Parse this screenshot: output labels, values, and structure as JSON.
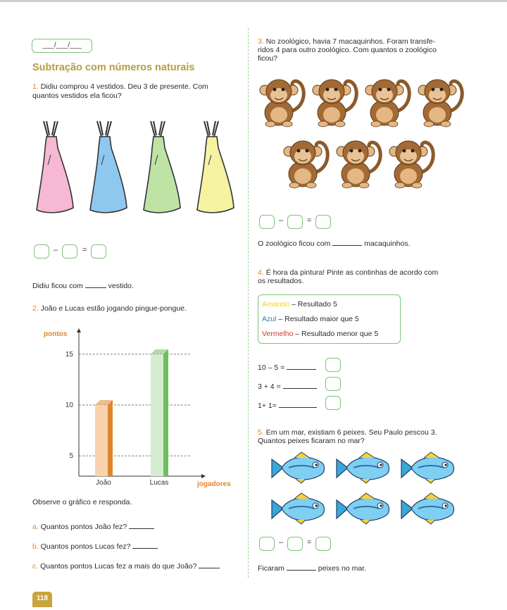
{
  "date_placeholder": "___/___/___",
  "title": "Subtração com números naturais",
  "q1": {
    "number": "1.",
    "text_line1": "Didiu comprou 4 vestidos. Deu 3 de presente. Com",
    "text_line2": "quantos vestidos ela ficou?",
    "minus": "–",
    "equals": "=",
    "answer_before": "Didiu ficou com",
    "answer_after": "vestido.",
    "dress_colors": [
      "#f6b8d3",
      "#8fc8ef",
      "#bfe3a5",
      "#f5f2a2"
    ]
  },
  "q2": {
    "number": "2.",
    "text": "João e Lucas estão jogando pingue-pongue.",
    "observe": "Observe o gráfico e responda.",
    "a_letter": "a.",
    "a_text": "Quantos pontos João fez?",
    "b_letter": "b.",
    "b_text": "Quantos pontos Lucas fez?",
    "c_letter": "c.",
    "c_text": "Quantos pontos Lucas fez a mais do que João?"
  },
  "chart_data": {
    "type": "bar",
    "categories": [
      "João",
      "Lucas"
    ],
    "values": [
      10,
      15
    ],
    "ylabel": "pontos",
    "xlabel": "jogadores",
    "ylim": [
      3,
      17
    ],
    "yticks": [
      5,
      10,
      15
    ],
    "ytick_labels": [
      "5",
      "10",
      "15"
    ],
    "bar_colors": [
      "#f8d3ad",
      "#d5ecd0"
    ],
    "bar_side_colors": [
      "#e0852b",
      "#6dbf5f"
    ],
    "grid": "dashed"
  },
  "q3": {
    "number": "3.",
    "text_line1": "No zoológico, havia 7 macaquinhos. Foram transfe-",
    "text_line2": "ridos 4 para outro zoológico. Com quantos o zoológico",
    "text_line3": "ficou?",
    "minus": "–",
    "equals": "=",
    "answer_before": "O zoológico ficou com",
    "answer_after": "macaquinhos.",
    "monkey_count": 7
  },
  "q4": {
    "number": "4.",
    "text_line1": "É hora da pintura! Pinte as continhas de acordo com",
    "text_line2": "os resultados.",
    "legend": {
      "yellow_word": "Amarelo",
      "yellow_rest": " – Resultado 5",
      "blue_word": "Azul",
      "blue_rest": " – Resultado maior que 5",
      "red_word": "Vermelho",
      "red_rest": " – Resultado menor que 5",
      "yellow_color": "#f2d21b",
      "blue_color": "#2a7fc0",
      "red_color": "#d9342b"
    },
    "expressions": [
      "10 – 5 =",
      "3 + 4 =",
      "1+ 1="
    ]
  },
  "q5": {
    "number": "5.",
    "text_line1": "Em um mar, existiam 6 peixes. Seu Paulo pescou 3.",
    "text_line2": "Quantos peixes ficaram no mar?",
    "minus": "–",
    "equals": "=",
    "answer_before": "Ficaram",
    "answer_after": "peixes no mar.",
    "fish_count": 6
  },
  "page_number": "118"
}
